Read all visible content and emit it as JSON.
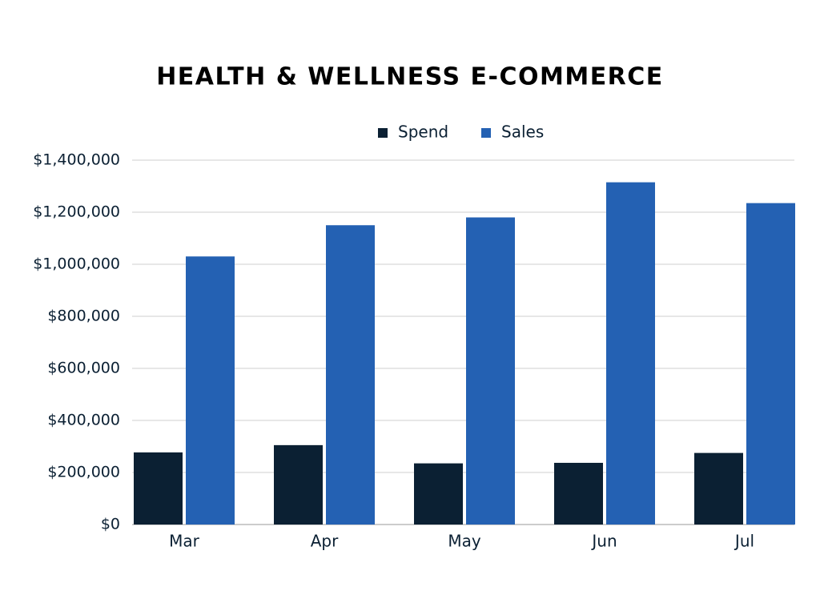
{
  "chart_data": {
    "type": "bar",
    "title": "HEALTH & WELLNESS E-COMMERCE",
    "categories": [
      "Mar",
      "Apr",
      "May",
      "Jun",
      "Jul"
    ],
    "series": [
      {
        "name": "Spend",
        "color": "#0b2033",
        "values": [
          277000,
          305000,
          235000,
          237000,
          275000
        ]
      },
      {
        "name": "Sales",
        "color": "#2461b3",
        "values": [
          1030000,
          1150000,
          1180000,
          1315000,
          1235000
        ]
      }
    ],
    "ylim": [
      0,
      1400000
    ],
    "yticks": [
      {
        "value": 0,
        "label": "$0"
      },
      {
        "value": 200000,
        "label": "$200,000"
      },
      {
        "value": 400000,
        "label": "$400,000"
      },
      {
        "value": 600000,
        "label": "$600,000"
      },
      {
        "value": 800000,
        "label": "$800,000"
      },
      {
        "value": 1000000,
        "label": "$1,000,000"
      },
      {
        "value": 1200000,
        "label": "$1,200,000"
      },
      {
        "value": 1400000,
        "label": "$1,400,000"
      }
    ],
    "grid": true,
    "legend": "top"
  }
}
